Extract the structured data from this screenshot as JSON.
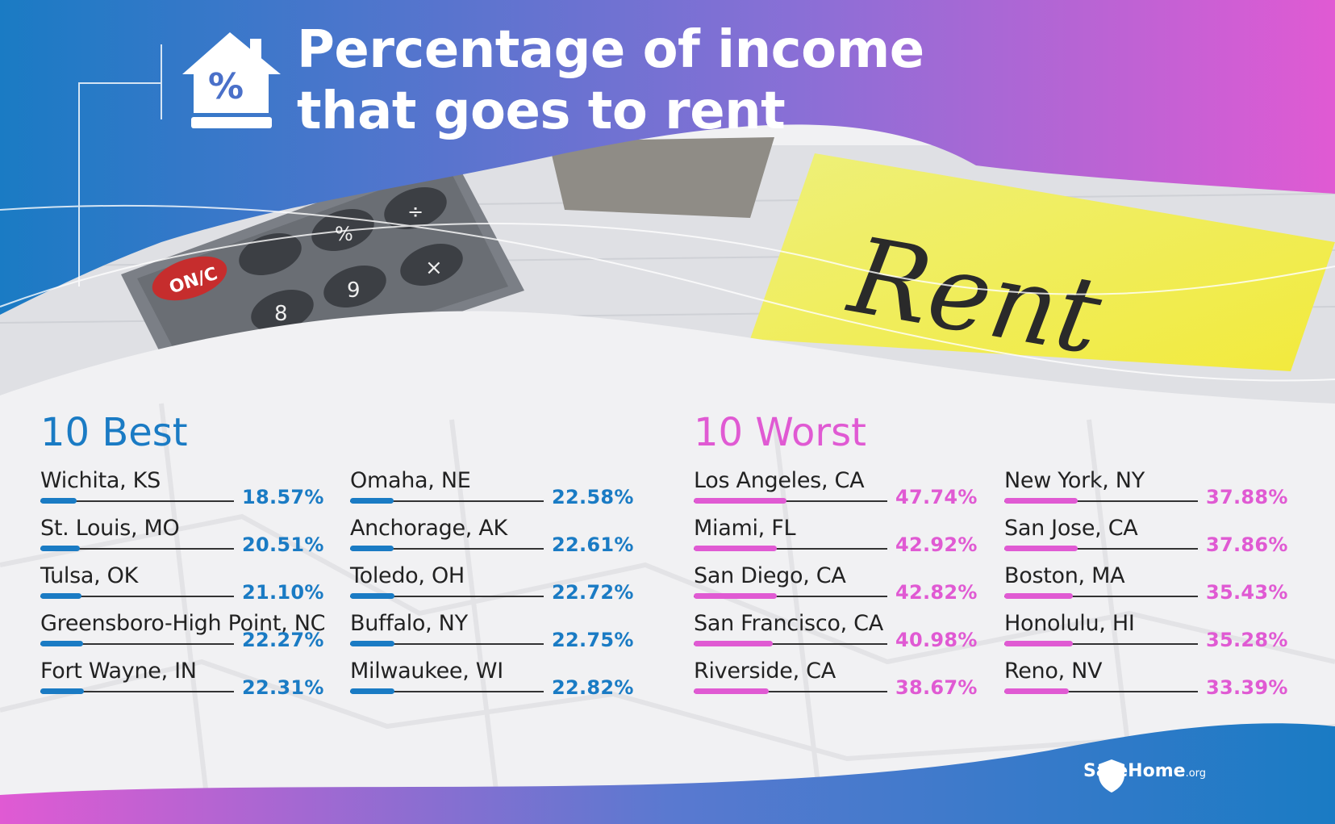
{
  "title": {
    "line1": "Percentage of income",
    "line2": "that goes to rent"
  },
  "best_heading": "10 Best",
  "worst_heading": "10 Worst",
  "brand": {
    "name": "SafeHome",
    "suffix": ".org"
  },
  "photo": {
    "sticky_note_text": "Rent",
    "calculator_key_on": "ON/C"
  },
  "colors": {
    "best": "#1a7bc4",
    "worst": "#e05ad3",
    "gradient_left": "#1a7bc4",
    "gradient_right": "#e05ad3"
  },
  "chart_data": [
    {
      "type": "bar",
      "title": "10 Best",
      "unit": "%",
      "categories": [
        "Wichita, KS",
        "St. Louis, MO",
        "Tulsa, OK",
        "Greensboro-High Point, NC",
        "Fort Wayne, IN",
        "Omaha, NE",
        "Anchorage, AK",
        "Toledo, OH",
        "Buffalo, NY",
        "Milwaukee, WI"
      ],
      "values": [
        18.57,
        20.51,
        21.1,
        22.27,
        22.31,
        22.58,
        22.61,
        22.72,
        22.75,
        22.82
      ],
      "labels": [
        "18.57%",
        "20.51%",
        "21.10%",
        "22.27%",
        "22.31%",
        "22.58%",
        "22.61%",
        "22.72%",
        "22.75%",
        "22.82%"
      ]
    },
    {
      "type": "bar",
      "title": "10 Worst",
      "unit": "%",
      "categories": [
        "Los Angeles, CA",
        "Miami, FL",
        "San Diego, CA",
        "San Francisco, CA",
        "Riverside, CA",
        "New York, NY",
        "San Jose, CA",
        "Boston, MA",
        "Honolulu, HI",
        "Reno, NV"
      ],
      "values": [
        47.74,
        42.92,
        42.82,
        40.98,
        38.67,
        37.88,
        37.86,
        35.43,
        35.28,
        33.39
      ],
      "labels": [
        "47.74%",
        "42.92%",
        "42.82%",
        "40.98%",
        "38.67%",
        "37.88%",
        "37.86%",
        "35.43%",
        "35.28%",
        "33.39%"
      ]
    }
  ]
}
